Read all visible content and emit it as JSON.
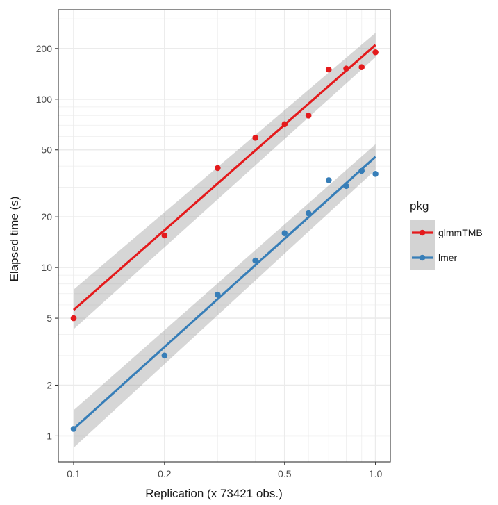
{
  "chart_data": {
    "type": "scatter",
    "title": "",
    "xlabel": "Replication (x 73421 obs.)",
    "ylabel": "Elapsed time (s)",
    "x_scale": "log",
    "y_scale": "log",
    "xlim": [
      0.089,
      1.12
    ],
    "ylim": [
      0.7,
      340
    ],
    "x_ticks": [
      0.1,
      0.2,
      0.5,
      1.0
    ],
    "x_tick_labels": [
      "0.1",
      "0.2",
      "0.5",
      "1.0"
    ],
    "x_minor_ticks": [
      0.3,
      0.4,
      0.6,
      0.7,
      0.8,
      0.9
    ],
    "y_ticks": [
      1,
      2,
      5,
      10,
      20,
      50,
      100,
      200
    ],
    "y_tick_labels": [
      "1",
      "2",
      "5",
      "10",
      "20",
      "50",
      "100",
      "200"
    ],
    "y_minor_ticks": [
      3,
      4,
      6,
      7,
      8,
      9,
      30,
      40,
      60,
      70,
      80,
      90,
      300
    ],
    "grid": true,
    "legend": {
      "title": "pkg",
      "position": "right"
    },
    "series": [
      {
        "name": "glmmTMB",
        "color": "#e41a1c",
        "x": [
          0.1,
          0.2,
          0.3,
          0.4,
          0.5,
          0.6,
          0.7,
          0.8,
          0.9,
          1.0
        ],
        "y": [
          5.0,
          15.5,
          39,
          59,
          71,
          80,
          150,
          152,
          155,
          190
        ],
        "fit": {
          "x": [
            0.1,
            1.0
          ],
          "y": [
            5.6,
            210
          ],
          "ci_lower": [
            4.3,
            178
          ],
          "ci_upper": [
            7.4,
            248
          ]
        }
      },
      {
        "name": "lmer",
        "color": "#377eb8",
        "x": [
          0.1,
          0.2,
          0.3,
          0.4,
          0.5,
          0.6,
          0.7,
          0.8,
          0.9,
          1.0
        ],
        "y": [
          1.1,
          3.0,
          6.9,
          11,
          16,
          21,
          33,
          30.5,
          37.5,
          36
        ],
        "fit": {
          "x": [
            0.1,
            1.0
          ],
          "y": [
            1.1,
            45.5
          ],
          "ci_lower": [
            0.85,
            38
          ],
          "ci_upper": [
            1.42,
            54
          ]
        }
      }
    ]
  }
}
